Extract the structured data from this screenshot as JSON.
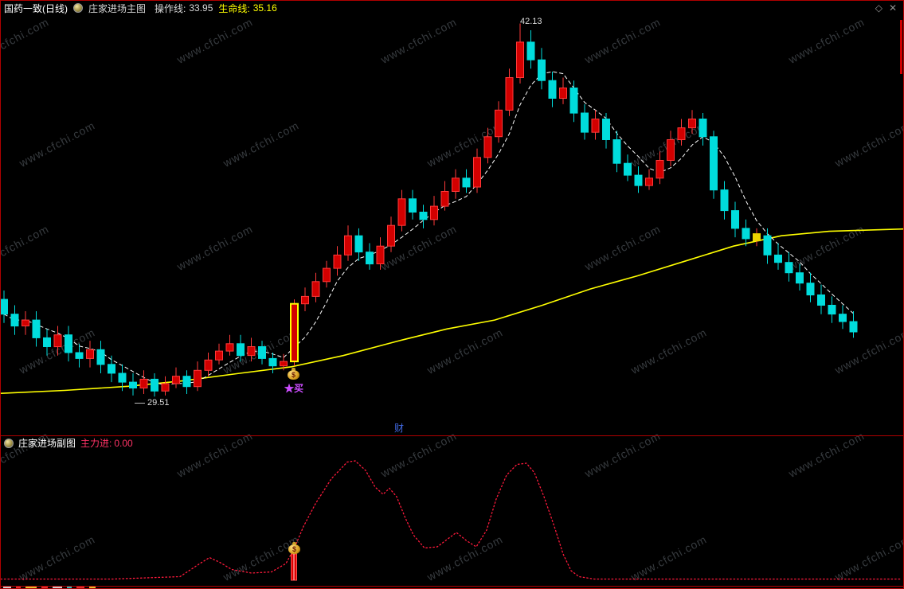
{
  "header": {
    "stock_title": "国药一致(日线)",
    "indicator_name": "庄家进场主图",
    "op_line_label": "操作线:",
    "op_line_value": "33.95",
    "life_line_label": "生命线:",
    "life_line_value": "35.16"
  },
  "sub_header": {
    "indicator_name": "庄家进场副图",
    "main_force_label": "主力进:",
    "main_force_value": "0.00"
  },
  "window_icons": {
    "diamond": "◇",
    "close": "✕"
  },
  "annotations": {
    "peak": "42.13",
    "low": "29.51",
    "buy": "★买",
    "wealth": "财"
  },
  "watermark": {
    "text": "www.cfchi.com"
  },
  "chart_data": [
    {
      "type": "candlestick",
      "title": "国药一致 日线 庄家进场主图",
      "ylim": [
        28.9,
        42.6
      ],
      "grid": false,
      "legend": "none",
      "peak_label": "42.13",
      "low_label": "29.51",
      "buy_signal_index": 27,
      "box_marker_index": 70,
      "colors": {
        "up_fill": "#d20000",
        "up_stroke": "#ff3a3a",
        "down_fill": "#00dcdc",
        "down_stroke": "#00dcdc",
        "life_line": "#ffff00",
        "op_line": "#ffffff",
        "highlight": "#ffff00",
        "box_marker": "#edd500"
      },
      "candles": [
        [
          32.8,
          33.1,
          32.0,
          32.3
        ],
        [
          32.3,
          32.6,
          31.6,
          31.9
        ],
        [
          31.9,
          32.4,
          31.6,
          32.1
        ],
        [
          32.1,
          32.4,
          31.2,
          31.5
        ],
        [
          31.5,
          31.8,
          30.9,
          31.2
        ],
        [
          31.2,
          31.9,
          30.9,
          31.6
        ],
        [
          31.6,
          31.9,
          30.7,
          31.0
        ],
        [
          31.0,
          31.3,
          30.5,
          30.8
        ],
        [
          30.8,
          31.4,
          30.5,
          31.1
        ],
        [
          31.1,
          31.4,
          30.3,
          30.6
        ],
        [
          30.6,
          30.9,
          30.0,
          30.3
        ],
        [
          30.3,
          30.6,
          29.7,
          30.0
        ],
        [
          30.0,
          30.3,
          29.55,
          29.8
        ],
        [
          29.8,
          30.4,
          29.6,
          30.1
        ],
        [
          30.1,
          30.3,
          29.51,
          29.7
        ],
        [
          29.7,
          30.2,
          29.55,
          29.95
        ],
        [
          29.95,
          30.5,
          29.8,
          30.2
        ],
        [
          30.2,
          30.4,
          29.6,
          29.85
        ],
        [
          29.85,
          30.7,
          29.7,
          30.4
        ],
        [
          30.4,
          31.0,
          30.2,
          30.75
        ],
        [
          30.75,
          31.3,
          30.6,
          31.05
        ],
        [
          31.05,
          31.6,
          30.9,
          31.3
        ],
        [
          31.3,
          31.6,
          30.7,
          30.9
        ],
        [
          30.9,
          31.5,
          30.7,
          31.2
        ],
        [
          31.2,
          31.4,
          30.6,
          30.8
        ],
        [
          30.8,
          31.0,
          30.3,
          30.55
        ],
        [
          30.55,
          30.95,
          30.4,
          30.7
        ],
        [
          30.7,
          32.8,
          30.55,
          32.65
        ],
        [
          32.65,
          33.2,
          32.4,
          32.9
        ],
        [
          32.9,
          33.7,
          32.7,
          33.4
        ],
        [
          33.4,
          34.1,
          33.2,
          33.85
        ],
        [
          33.85,
          34.6,
          33.6,
          34.3
        ],
        [
          34.3,
          35.3,
          34.1,
          34.95
        ],
        [
          34.95,
          35.2,
          34.1,
          34.4
        ],
        [
          34.4,
          34.7,
          33.8,
          34.0
        ],
        [
          34.0,
          34.9,
          33.8,
          34.6
        ],
        [
          34.6,
          35.6,
          34.4,
          35.3
        ],
        [
          35.3,
          36.5,
          35.1,
          36.2
        ],
        [
          36.2,
          36.5,
          35.5,
          35.75
        ],
        [
          35.75,
          36.0,
          35.2,
          35.5
        ],
        [
          35.5,
          36.3,
          35.3,
          35.95
        ],
        [
          35.95,
          36.8,
          35.8,
          36.45
        ],
        [
          36.45,
          37.2,
          36.2,
          36.9
        ],
        [
          36.9,
          37.2,
          36.4,
          36.6
        ],
        [
          36.6,
          37.9,
          36.4,
          37.6
        ],
        [
          37.6,
          38.6,
          37.4,
          38.3
        ],
        [
          38.3,
          39.5,
          38.1,
          39.2
        ],
        [
          39.2,
          40.6,
          39.0,
          40.3
        ],
        [
          40.3,
          42.13,
          40.1,
          41.5
        ],
        [
          41.5,
          41.9,
          40.6,
          40.9
        ],
        [
          40.9,
          41.3,
          39.9,
          40.2
        ],
        [
          40.2,
          40.5,
          39.3,
          39.6
        ],
        [
          39.6,
          40.3,
          39.4,
          39.95
        ],
        [
          39.95,
          40.2,
          38.8,
          39.1
        ],
        [
          39.1,
          39.4,
          38.2,
          38.45
        ],
        [
          38.45,
          39.2,
          38.2,
          38.9
        ],
        [
          38.9,
          39.1,
          37.9,
          38.2
        ],
        [
          38.2,
          38.5,
          37.1,
          37.4
        ],
        [
          37.4,
          37.7,
          36.8,
          37.0
        ],
        [
          37.0,
          37.3,
          36.4,
          36.65
        ],
        [
          36.65,
          37.2,
          36.5,
          36.9
        ],
        [
          36.9,
          37.8,
          36.7,
          37.5
        ],
        [
          37.5,
          38.5,
          37.3,
          38.2
        ],
        [
          38.2,
          38.9,
          38.0,
          38.6
        ],
        [
          38.6,
          39.2,
          38.4,
          38.9
        ],
        [
          38.9,
          39.1,
          38.0,
          38.3
        ],
        [
          38.3,
          38.5,
          36.2,
          36.5
        ],
        [
          36.5,
          36.8,
          35.5,
          35.8
        ],
        [
          35.8,
          36.1,
          34.9,
          35.2
        ],
        [
          35.2,
          35.5,
          34.6,
          34.85
        ],
        [
          34.85,
          35.2,
          34.6,
          34.95
        ],
        [
          34.95,
          35.2,
          34.0,
          34.3
        ],
        [
          34.3,
          34.7,
          33.8,
          34.05
        ],
        [
          34.05,
          34.4,
          33.4,
          33.7
        ],
        [
          33.7,
          34.0,
          33.1,
          33.35
        ],
        [
          33.35,
          33.7,
          32.7,
          32.95
        ],
        [
          32.95,
          33.3,
          32.3,
          32.6
        ],
        [
          32.6,
          32.9,
          32.0,
          32.3
        ],
        [
          32.3,
          32.6,
          31.8,
          32.05
        ],
        [
          32.05,
          32.4,
          31.5,
          31.7
        ]
      ],
      "life_line": [
        [
          0,
          29.62
        ],
        [
          80,
          29.72
        ],
        [
          160,
          29.86
        ],
        [
          230,
          30.05
        ],
        [
          300,
          30.3
        ],
        [
          365,
          30.52
        ],
        [
          430,
          30.9
        ],
        [
          500,
          31.4
        ],
        [
          560,
          31.8
        ],
        [
          620,
          32.1
        ],
        [
          680,
          32.6
        ],
        [
          740,
          33.15
        ],
        [
          800,
          33.6
        ],
        [
          860,
          34.1
        ],
        [
          920,
          34.6
        ],
        [
          980,
          34.95
        ],
        [
          1040,
          35.1
        ],
        [
          1134,
          35.18
        ]
      ]
    },
    {
      "type": "line",
      "name": "主力进",
      "color": "#ff1a3c",
      "ylim": [
        0,
        110
      ],
      "points": [
        [
          0,
          1
        ],
        [
          140,
          1
        ],
        [
          225,
          3
        ],
        [
          250,
          14
        ],
        [
          262,
          19
        ],
        [
          275,
          15
        ],
        [
          290,
          9
        ],
        [
          315,
          6
        ],
        [
          340,
          7
        ],
        [
          358,
          14
        ],
        [
          368,
          26
        ],
        [
          380,
          45
        ],
        [
          395,
          64
        ],
        [
          415,
          85
        ],
        [
          435,
          99
        ],
        [
          445,
          100
        ],
        [
          458,
          92
        ],
        [
          470,
          78
        ],
        [
          480,
          72
        ],
        [
          488,
          77
        ],
        [
          497,
          70
        ],
        [
          508,
          52
        ],
        [
          518,
          38
        ],
        [
          532,
          27
        ],
        [
          548,
          28
        ],
        [
          562,
          35
        ],
        [
          572,
          40
        ],
        [
          585,
          33
        ],
        [
          597,
          28
        ],
        [
          610,
          42
        ],
        [
          622,
          68
        ],
        [
          635,
          88
        ],
        [
          648,
          97
        ],
        [
          660,
          98
        ],
        [
          670,
          90
        ],
        [
          682,
          70
        ],
        [
          695,
          45
        ],
        [
          706,
          22
        ],
        [
          716,
          8
        ],
        [
          726,
          3
        ],
        [
          745,
          1
        ],
        [
          1130,
          1
        ]
      ],
      "bar": {
        "x": 368,
        "value": 22,
        "color": "#dd0000"
      }
    }
  ]
}
